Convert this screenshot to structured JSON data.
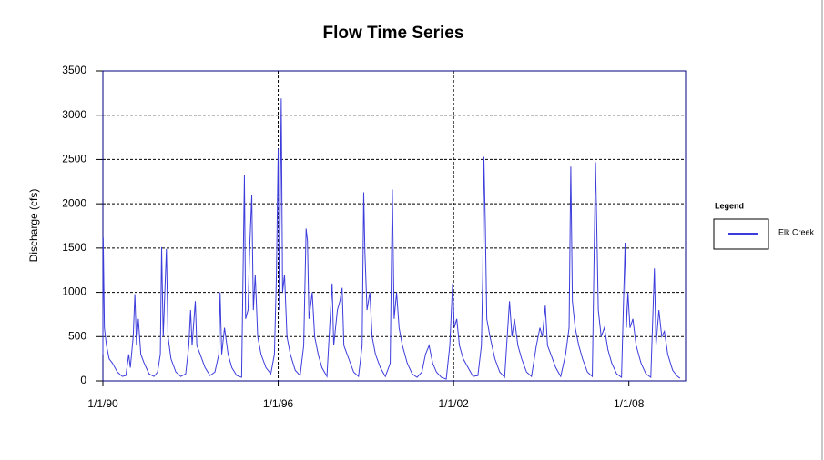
{
  "chart_data": {
    "type": "line",
    "title": "Flow Time Series",
    "y_label": "Discharge (cfs)",
    "legend_title": "Legend",
    "legend": "right",
    "xlim": [
      "1990-01-01",
      "2009-12-10"
    ],
    "xticks": [
      {
        "value": "1990-01-01",
        "label": "1/1/90"
      },
      {
        "value": "1996-01-01",
        "label": "1/1/96"
      },
      {
        "value": "2002-01-01",
        "label": "1/1/02"
      },
      {
        "value": "2008-01-01",
        "label": "1/1/08"
      }
    ],
    "xgrid": [
      1,
      2
    ],
    "ylim": [
      0,
      3500
    ],
    "yticks": [
      0,
      500,
      1000,
      1500,
      2000,
      2500,
      3000,
      3500
    ],
    "grid": true,
    "x": [
      "1990-01-01",
      "1990-01-05",
      "1990-01-20",
      "1990-02-15",
      "1990-03-20",
      "1990-05-01",
      "1990-07-01",
      "1990-09-01",
      "1990-10-15",
      "1990-11-20",
      "1990-12-10",
      "1991-01-15",
      "1991-02-05",
      "1991-02-25",
      "1991-03-20",
      "1991-04-20",
      "1991-06-01",
      "1991-08-01",
      "1991-10-01",
      "1991-11-15",
      "1991-12-20",
      "1992-01-05",
      "1992-01-25",
      "1992-03-05",
      "1992-03-25",
      "1992-05-01",
      "1992-07-01",
      "1992-09-01",
      "1992-11-01",
      "1992-12-10",
      "1993-01-01",
      "1993-01-20",
      "1993-03-01",
      "1993-03-20",
      "1993-05-01",
      "1993-07-01",
      "1993-09-01",
      "1993-11-01",
      "1993-12-20",
      "1994-01-05",
      "1994-01-25",
      "1994-03-01",
      "1994-04-15",
      "1994-06-01",
      "1994-08-01",
      "1994-10-01",
      "1994-11-05",
      "1994-11-20",
      "1994-12-20",
      "1995-01-10",
      "1995-02-05",
      "1995-02-25",
      "1995-03-20",
      "1995-04-20",
      "1995-06-01",
      "1995-08-01",
      "1995-10-01",
      "1995-11-15",
      "1995-12-10",
      "1996-01-01",
      "1996-01-15",
      "1996-02-08",
      "1996-02-25",
      "1996-03-20",
      "1996-04-20",
      "1996-06-01",
      "1996-08-01",
      "1996-10-01",
      "1996-11-15",
      "1996-12-15",
      "1997-01-01",
      "1997-01-20",
      "1997-03-01",
      "1997-04-01",
      "1997-05-15",
      "1997-07-01",
      "1997-09-01",
      "1997-11-05",
      "1997-11-25",
      "1998-01-10",
      "1998-02-10",
      "1998-03-10",
      "1998-04-01",
      "1998-06-01",
      "1998-08-01",
      "1998-10-01",
      "1998-11-15",
      "1998-12-05",
      "1998-12-20",
      "1999-01-15",
      "1999-02-20",
      "1999-03-20",
      "1999-05-01",
      "1999-07-01",
      "1999-09-01",
      "1999-11-01",
      "1999-11-28",
      "1999-12-20",
      "2000-01-20",
      "2000-02-20",
      "2000-04-01",
      "2000-06-01",
      "2000-08-01",
      "2000-10-01",
      "2000-12-01",
      "2001-01-15",
      "2001-03-01",
      "2001-04-15",
      "2001-06-01",
      "2001-08-01",
      "2001-10-01",
      "2001-11-15",
      "2001-12-20",
      "2002-01-10",
      "2002-02-10",
      "2002-03-15",
      "2002-05-01",
      "2002-07-01",
      "2002-09-01",
      "2002-11-01",
      "2002-12-15",
      "2003-01-01",
      "2003-01-15",
      "2003-02-01",
      "2003-02-20",
      "2003-04-01",
      "2003-06-01",
      "2003-08-01",
      "2003-10-01",
      "2003-12-01",
      "2004-01-01",
      "2004-02-01",
      "2004-03-15",
      "2004-05-01",
      "2004-07-01",
      "2004-09-01",
      "2004-11-01",
      "2004-12-15",
      "2005-01-15",
      "2005-02-20",
      "2005-03-20",
      "2005-05-01",
      "2005-07-01",
      "2005-09-01",
      "2005-11-01",
      "2005-12-15",
      "2006-01-05",
      "2006-01-25",
      "2006-03-01",
      "2006-04-15",
      "2006-06-01",
      "2006-08-01",
      "2006-10-01",
      "2006-11-10",
      "2006-11-25",
      "2006-12-15",
      "2007-01-20",
      "2007-03-01",
      "2007-04-15",
      "2007-06-01",
      "2007-08-01",
      "2007-10-01",
      "2007-11-15",
      "2007-12-01",
      "2007-12-20",
      "2008-01-15",
      "2008-02-20",
      "2008-04-01",
      "2008-06-01",
      "2008-08-01",
      "2008-10-01",
      "2008-11-15",
      "2008-12-05",
      "2009-01-10",
      "2009-02-15",
      "2009-03-20",
      "2009-05-01",
      "2009-07-01",
      "2009-09-01",
      "2009-10-01"
    ],
    "series": [
      {
        "name": "Elk Creek",
        "color": "#3c3cdc",
        "values": [
          300,
          1620,
          600,
          400,
          250,
          200,
          100,
          50,
          60,
          300,
          150,
          500,
          980,
          400,
          700,
          300,
          200,
          80,
          50,
          100,
          300,
          1510,
          500,
          1490,
          500,
          250,
          100,
          50,
          80,
          400,
          800,
          400,
          900,
          400,
          300,
          150,
          60,
          100,
          300,
          1000,
          300,
          600,
          300,
          150,
          60,
          40,
          2320,
          700,
          800,
          1500,
          2100,
          800,
          1200,
          500,
          300,
          150,
          80,
          300,
          1200,
          2620,
          800,
          3190,
          1000,
          1200,
          500,
          300,
          120,
          60,
          400,
          1720,
          1580,
          700,
          1000,
          500,
          300,
          150,
          50,
          1100,
          400,
          800,
          900,
          1050,
          400,
          250,
          100,
          50,
          400,
          2130,
          1450,
          800,
          1000,
          500,
          300,
          150,
          50,
          200,
          2160,
          700,
          1000,
          600,
          400,
          200,
          80,
          40,
          100,
          300,
          400,
          200,
          100,
          40,
          20,
          400,
          1100,
          600,
          700,
          400,
          250,
          150,
          50,
          60,
          400,
          1200,
          2530,
          1800,
          700,
          500,
          250,
          100,
          40,
          900,
          500,
          700,
          400,
          250,
          100,
          50,
          400,
          600,
          500,
          850,
          400,
          300,
          150,
          50,
          300,
          600,
          2420,
          900,
          600,
          400,
          250,
          100,
          50,
          2470,
          1780,
          800,
          500,
          600,
          350,
          200,
          80,
          40,
          1560,
          600,
          1000,
          600,
          700,
          400,
          200,
          80,
          40,
          1270,
          400,
          800,
          500,
          560,
          300,
          120,
          50,
          30
        ]
      }
    ]
  }
}
